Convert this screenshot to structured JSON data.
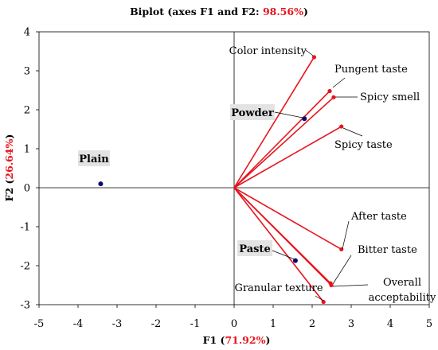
{
  "chart_data": {
    "type": "scatter",
    "title_prefix": "Biplot (axes F1 and F2: ",
    "title_pct": "98.56%",
    "title_suffix": ")",
    "xlabel_prefix": "F1 (",
    "xlabel_pct": "71.92%",
    "xlabel_suffix": ")",
    "ylabel_prefix": "F2 (",
    "ylabel_pct": "26.64%",
    "ylabel_suffix": ")",
    "xlim": [
      -5,
      5
    ],
    "ylim": [
      -3,
      4
    ],
    "xticks": [
      "-5",
      "-4",
      "-3",
      "-2",
      "-1",
      "0",
      "1",
      "2",
      "3",
      "4",
      "5"
    ],
    "yticks": [
      "-3",
      "-2",
      "-1",
      "0",
      "1",
      "2",
      "3",
      "4"
    ],
    "grid": false,
    "colors": {
      "variables": "#e8141c",
      "observations": "#0a0a6e",
      "highlight": "#e8141c"
    },
    "variables": [
      {
        "name": "Color intensity",
        "x": 2.05,
        "y": 3.35
      },
      {
        "name": "Pungent taste",
        "x": 2.45,
        "y": 2.48
      },
      {
        "name": "Spicy smell",
        "x": 2.55,
        "y": 2.32
      },
      {
        "name": "Spicy taste",
        "x": 2.75,
        "y": 1.57
      },
      {
        "name": "After taste",
        "x": 2.75,
        "y": -1.58
      },
      {
        "name": "Bitter taste",
        "x": 2.47,
        "y": -2.45
      },
      {
        "name": "Overall acceptability",
        "x": 2.49,
        "y": -2.5
      },
      {
        "name": "Granular texture",
        "x": 2.29,
        "y": -2.93
      }
    ],
    "observations": [
      {
        "name": "Plain",
        "x": -3.42,
        "y": 0.1
      },
      {
        "name": "Powder",
        "x": 1.8,
        "y": 1.77
      },
      {
        "name": "Paste",
        "x": 1.57,
        "y": -1.87
      }
    ]
  }
}
